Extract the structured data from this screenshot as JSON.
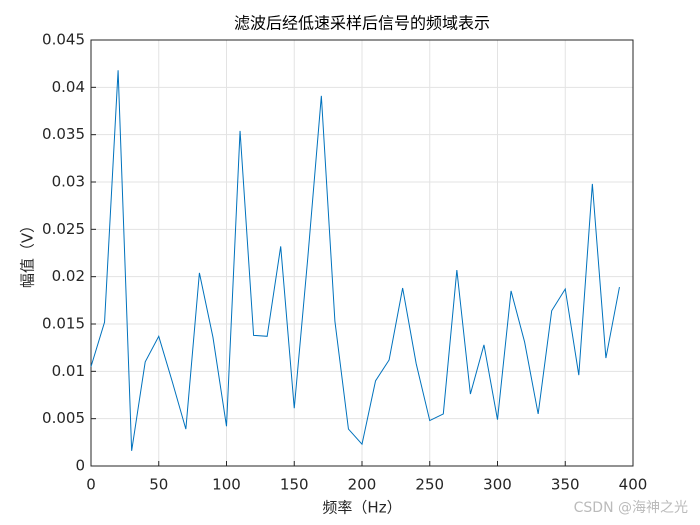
{
  "chart_data": {
    "type": "line",
    "title": "滤波后经低速采样后信号的频域表示",
    "x_label": "频率（Hz）",
    "y_label": "幅值（V）",
    "x": [
      0,
      10,
      20,
      30,
      40,
      50,
      60,
      70,
      80,
      90,
      100,
      110,
      120,
      130,
      140,
      150,
      160,
      170,
      180,
      190,
      200,
      210,
      220,
      230,
      240,
      250,
      260,
      270,
      280,
      290,
      300,
      310,
      320,
      330,
      340,
      350,
      360,
      370,
      380,
      390
    ],
    "series": [
      {
        "color": "#0072bd",
        "values": [
          0.0105,
          0.0152,
          0.0418,
          0.0016,
          0.011,
          0.0137,
          0.0089,
          0.0039,
          0.0204,
          0.0136,
          0.0042,
          0.0354,
          0.0138,
          0.0137,
          0.0232,
          0.0061,
          0.022,
          0.0391,
          0.0153,
          0.0039,
          0.0023,
          0.009,
          0.0112,
          0.0188,
          0.0108,
          0.0048,
          0.0055,
          0.0207,
          0.0076,
          0.0128,
          0.0049,
          0.0185,
          0.0131,
          0.0055,
          0.0164,
          0.0187,
          0.0096,
          0.0298,
          0.0114,
          0.0189
        ]
      }
    ],
    "xlim": [
      0,
      400
    ],
    "xticks": [
      0,
      50,
      100,
      150,
      200,
      250,
      300,
      350,
      400
    ],
    "ylim": [
      0,
      0.045
    ],
    "yticks": [
      0,
      0.005,
      0.01,
      0.015,
      0.02,
      0.025,
      0.03,
      0.035,
      0.04,
      0.045
    ],
    "grid": true,
    "annotation": "CSDN @海神之光"
  }
}
